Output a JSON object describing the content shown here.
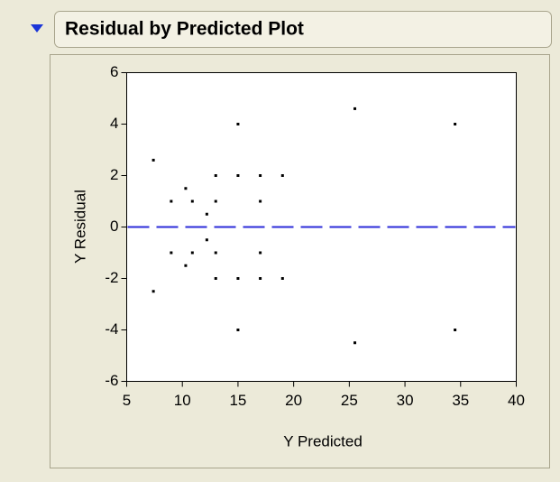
{
  "chart_data": {
    "type": "scatter",
    "title": "Residual by Predicted Plot",
    "x_label": "Y Predicted",
    "y_label": "Y Residual",
    "x": [
      7.4,
      7.4,
      9,
      9,
      10.3,
      10.3,
      10.9,
      10.9,
      13,
      13,
      13,
      13,
      12.2,
      12.2,
      15,
      15,
      15,
      15,
      17,
      17,
      17,
      17,
      19,
      19,
      25.5,
      25.5,
      34.5,
      34.5
    ],
    "y": [
      2.6,
      -2.5,
      1,
      -1,
      1.5,
      -1.5,
      1,
      -1,
      2,
      1,
      -1,
      -2,
      0.5,
      -0.5,
      4,
      2,
      -2,
      -4,
      2,
      1,
      -1,
      -2,
      2,
      -2,
      4.6,
      -4.5,
      4,
      -4
    ],
    "color": "#000000",
    "reference_line": 0,
    "reference_color": "#2b2bd9",
    "xlim": [
      5,
      40
    ],
    "ylim": [
      -6,
      6
    ],
    "xticks": [
      5,
      10,
      15,
      20,
      25,
      30,
      35,
      40
    ],
    "yticks": [
      -6,
      -4,
      -2,
      0,
      2,
      4,
      6
    ],
    "grid": false
  }
}
